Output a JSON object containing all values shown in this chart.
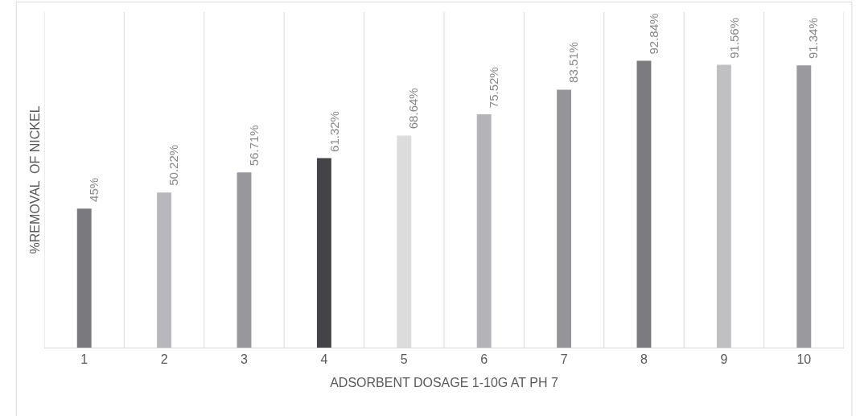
{
  "chart_data": {
    "type": "bar",
    "xlabel": "ADSORBENT DOSAGE 1-10G AT PH 7",
    "ylabel": "%REMOVAL  OF NICKEL",
    "grid": "x",
    "legend": false,
    "categories": [
      "1",
      "2",
      "3",
      "4",
      "5",
      "6",
      "7",
      "8",
      "9",
      "10"
    ],
    "values": [
      45,
      50.22,
      56.71,
      61.32,
      68.64,
      75.52,
      83.51,
      92.84,
      91.56,
      91.34
    ],
    "value_labels": [
      "45%",
      "50.22%",
      "56.71%",
      "61.32%",
      "68.64%",
      "75.52%",
      "83.51%",
      "92.84%",
      "91.56%",
      "91.34%"
    ],
    "colors": [
      "#7a7a7e",
      "#b8b8bc",
      "#98989c",
      "#444448",
      "#dcdcdc",
      "#b4b4b8",
      "#959599",
      "#7c7c80",
      "#c0c0c2",
      "#9a9a9e"
    ]
  }
}
